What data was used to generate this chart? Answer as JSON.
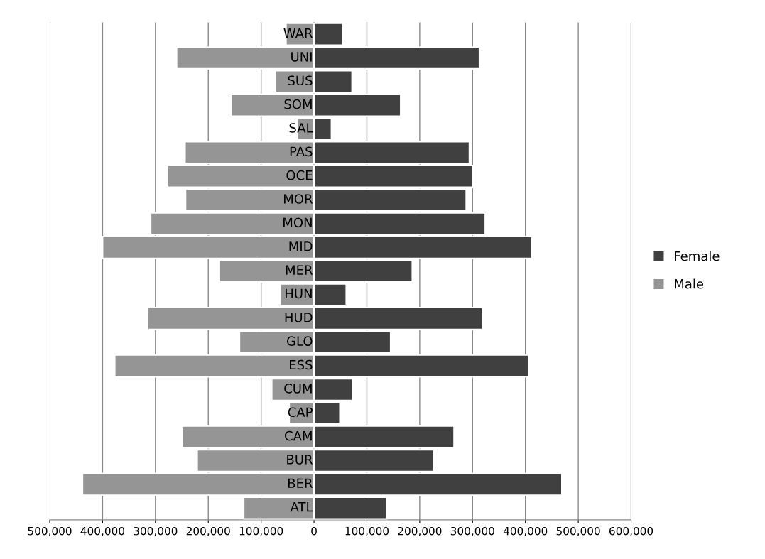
{
  "chart_data": {
    "type": "bar",
    "orientation": "horizontal",
    "categories": [
      "WAR",
      "UNI",
      "SUS",
      "SOM",
      "SAL",
      "PAS",
      "OCE",
      "MOR",
      "MON",
      "MID",
      "MER",
      "HUN",
      "HUD",
      "GLO",
      "ESS",
      "CUM",
      "CAP",
      "CAM",
      "BUR",
      "BER",
      "ATL"
    ],
    "series": [
      {
        "name": "Female",
        "color": "#404040",
        "values": [
          54000,
          313000,
          72000,
          164000,
          33000,
          294000,
          300000,
          288000,
          324000,
          412000,
          186000,
          61000,
          319000,
          145000,
          406000,
          73000,
          49000,
          265000,
          227000,
          469000,
          138000
        ]
      },
      {
        "name": "Male",
        "color": "#959595",
        "values": [
          -53000,
          -260000,
          -73000,
          -157000,
          -31000,
          -244000,
          -277000,
          -243000,
          -309000,
          -400000,
          -179000,
          -64000,
          -315000,
          -141000,
          -377000,
          -80000,
          -47000,
          -250000,
          -221000,
          -438000,
          -133000
        ]
      }
    ],
    "xlim": [
      -500000,
      600000
    ],
    "xticks": [
      {
        "value": -500000,
        "label": "500,000"
      },
      {
        "value": -400000,
        "label": "400,000"
      },
      {
        "value": -300000,
        "label": "300,000"
      },
      {
        "value": -200000,
        "label": "200,000"
      },
      {
        "value": -100000,
        "label": "100,000"
      },
      0,
      {
        "value": 100000,
        "label": "100,000"
      },
      {
        "value": 200000,
        "label": "200,000"
      },
      {
        "value": 300000,
        "label": "300,000"
      },
      {
        "value": 400000,
        "label": "400,000"
      },
      {
        "value": 500000,
        "label": "500,000"
      },
      {
        "value": 600000,
        "label": "600,000"
      }
    ],
    "grid": "x",
    "legend": "right",
    "stacked": true
  }
}
